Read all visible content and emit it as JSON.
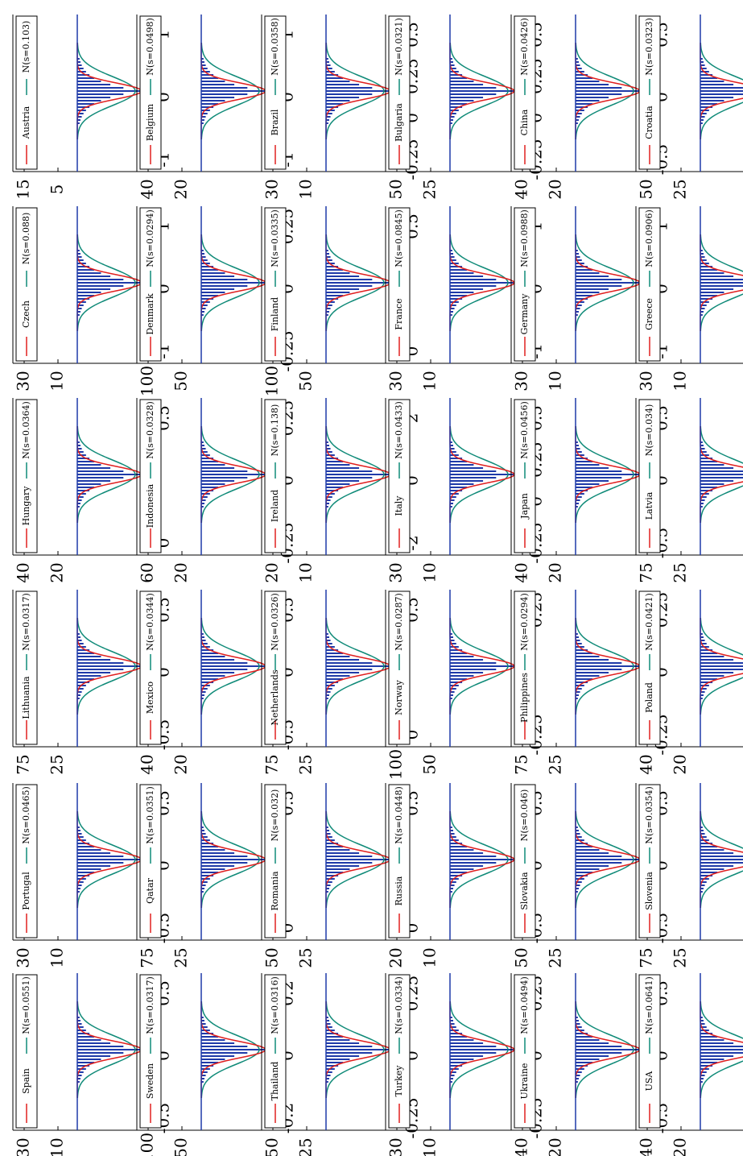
{
  "colors": {
    "empirical": "#e0201f",
    "normal": "#0f8a78",
    "histogram": "#1f3aa8"
  },
  "chart_data": [
    {
      "type": "line",
      "country": "Austria",
      "legend": {
        "empirical": "Austria",
        "normal": "N(s=0.103)"
      },
      "yticks": [
        "15",
        "5"
      ],
      "xticks": [
        "-1",
        "0",
        "1"
      ]
    },
    {
      "type": "line",
      "country": "Belgium",
      "legend": {
        "empirical": "Belgium",
        "normal": "N(s=0.0498)"
      },
      "yticks": [
        "40",
        "20"
      ],
      "xticks": [
        "-1",
        "0",
        "1"
      ]
    },
    {
      "type": "line",
      "country": "Brazil",
      "legend": {
        "empirical": "Brazil",
        "normal": "N(s=0.0358)"
      },
      "yticks": [
        "30",
        "10"
      ],
      "xticks": [
        "-0.25",
        "0",
        "0.25",
        "0.5"
      ]
    },
    {
      "type": "line",
      "country": "Bulgaria",
      "legend": {
        "empirical": "Bulgaria",
        "normal": "N(s=0.0321)"
      },
      "yticks": [
        "50",
        "25"
      ],
      "xticks": [
        "-0.25",
        "0",
        "0.25",
        "0.5"
      ]
    },
    {
      "type": "line",
      "country": "China",
      "legend": {
        "empirical": "China",
        "normal": "N(s=0.0426)"
      },
      "yticks": [
        "40",
        "20"
      ],
      "xticks": [
        "-0.5",
        "0",
        "0.5"
      ]
    },
    {
      "type": "line",
      "country": "Croatia",
      "legend": {
        "empirical": "Croatia",
        "normal": "N(s=0.0323)"
      },
      "yticks": [
        "50",
        "25"
      ],
      "xticks": [
        "-0.5",
        "-0.25",
        "0",
        "0.25"
      ]
    },
    {
      "type": "line",
      "country": "Czech",
      "legend": {
        "empirical": "Czech",
        "normal": "N(s=0.088)"
      },
      "yticks": [
        "30",
        "10"
      ],
      "xticks": [
        "-1",
        "0",
        "1"
      ]
    },
    {
      "type": "line",
      "country": "Denmark",
      "legend": {
        "empirical": "Denmark",
        "normal": "N(s=0.0294)"
      },
      "yticks": [
        "100",
        "50"
      ],
      "xticks": [
        "-0.25",
        "0",
        "0.25"
      ]
    },
    {
      "type": "line",
      "country": "Finland",
      "legend": {
        "empirical": "Finland",
        "normal": "N(s=0.0335)"
      },
      "yticks": [
        "100",
        "50"
      ],
      "xticks": [
        "0",
        "0.5"
      ]
    },
    {
      "type": "line",
      "country": "France",
      "legend": {
        "empirical": "France",
        "normal": "N(s=0.0845)"
      },
      "yticks": [
        "30",
        "10"
      ],
      "xticks": [
        "-1",
        "0",
        "1"
      ]
    },
    {
      "type": "line",
      "country": "Germany",
      "legend": {
        "empirical": "Germany",
        "normal": "N(s=0.0988)"
      },
      "yticks": [
        "30",
        "10"
      ],
      "xticks": [
        "-1",
        "0",
        "1"
      ]
    },
    {
      "type": "line",
      "country": "Greece",
      "legend": {
        "empirical": "Greece",
        "normal": "N(s=0.0906)"
      },
      "yticks": [
        "30",
        "10"
      ],
      "xticks": [
        "-4",
        "-2",
        "0"
      ]
    },
    {
      "type": "line",
      "country": "Hungary",
      "legend": {
        "empirical": "Hungary",
        "normal": "N(s=0.0364)"
      },
      "yticks": [
        "40",
        "20"
      ],
      "xticks": [
        "0",
        "0.5"
      ]
    },
    {
      "type": "line",
      "country": "Indonesia",
      "legend": {
        "empirical": "Indonesia",
        "normal": "N(s=0.0328)"
      },
      "yticks": [
        "60",
        "20"
      ],
      "xticks": [
        "-0.25",
        "0",
        "0.25"
      ]
    },
    {
      "type": "line",
      "country": "Ireland",
      "legend": {
        "empirical": "Ireland",
        "normal": "N(s=0.138)"
      },
      "yticks": [
        "20",
        "10"
      ],
      "xticks": [
        "-2",
        "0",
        "2"
      ]
    },
    {
      "type": "line",
      "country": "Italy",
      "legend": {
        "empirical": "Italy",
        "normal": "N(s=0.0433)"
      },
      "yticks": [
        "30",
        "10"
      ],
      "xticks": [
        "-0.25",
        "0",
        "0.25",
        "0.5"
      ]
    },
    {
      "type": "line",
      "country": "Japan",
      "legend": {
        "empirical": "Japan",
        "normal": "N(s=0.0456)"
      },
      "yticks": [
        "40",
        "20"
      ],
      "xticks": [
        "-0.5",
        "0",
        "0.5"
      ]
    },
    {
      "type": "line",
      "country": "Latvia",
      "legend": {
        "empirical": "Latvia",
        "normal": "N(s=0.034)"
      },
      "yticks": [
        "75",
        "25"
      ],
      "xticks": [
        "-0.5",
        "0",
        "0.5"
      ]
    },
    {
      "type": "line",
      "country": "Lithuania",
      "legend": {
        "empirical": "Lithuania",
        "normal": "N(s=0.0317)"
      },
      "yticks": [
        "75",
        "25"
      ],
      "xticks": [
        "-0.5",
        "0",
        "0.5"
      ]
    },
    {
      "type": "line",
      "country": "Mexico",
      "legend": {
        "empirical": "Mexico",
        "normal": "N(s=0.0344)"
      },
      "yticks": [
        "40",
        "20"
      ],
      "xticks": [
        "-0.5",
        "0",
        "0.5"
      ]
    },
    {
      "type": "line",
      "country": "Netherlands",
      "legend": {
        "empirical": "Netherlands",
        "normal": "N(s=0.0326)"
      },
      "yticks": [
        "75",
        "25"
      ],
      "xticks": [
        "0",
        "0.5"
      ]
    },
    {
      "type": "line",
      "country": "Norway",
      "legend": {
        "empirical": "Norway",
        "normal": "N(s=0.0287)"
      },
      "yticks": [
        "100",
        "50"
      ],
      "xticks": [
        "-0.25",
        "0.25"
      ]
    },
    {
      "type": "line",
      "country": "Philippines",
      "legend": {
        "empirical": "Philippines",
        "normal": "N(s=0.0294)"
      },
      "yticks": [
        "75",
        "25"
      ],
      "xticks": [
        "-0.25",
        "0",
        "0.25"
      ]
    },
    {
      "type": "line",
      "country": "Poland",
      "legend": {
        "empirical": "Poland",
        "normal": "N(s=0.0421)"
      },
      "yticks": [
        "40",
        "20"
      ],
      "xticks": [
        "-0.5",
        "0",
        "0.5"
      ]
    },
    {
      "type": "line",
      "country": "Portugal",
      "legend": {
        "empirical": "Portugal",
        "normal": "N(s=0.0465)"
      },
      "yticks": [
        "30",
        "10"
      ],
      "xticks": [
        "-0.5",
        "0",
        "0.5"
      ]
    },
    {
      "type": "line",
      "country": "Qatar",
      "legend": {
        "empirical": "Qatar",
        "normal": "N(s=0.0351)"
      },
      "yticks": [
        "75",
        "25"
      ],
      "xticks": [
        "0",
        "0.5"
      ]
    },
    {
      "type": "line",
      "country": "Romania",
      "legend": {
        "empirical": "Romania",
        "normal": "N(s=0.032)"
      },
      "yticks": [
        "50",
        "25"
      ],
      "xticks": [
        "0",
        "0.5"
      ]
    },
    {
      "type": "line",
      "country": "Russia",
      "legend": {
        "empirical": "Russia",
        "normal": "N(s=0.0448)"
      },
      "yticks": [
        "20",
        "10"
      ],
      "xticks": [
        "-0.5",
        "0",
        "0.5"
      ]
    },
    {
      "type": "line",
      "country": "Slovakia",
      "legend": {
        "empirical": "Slovakia",
        "normal": "N(s=0.046)"
      },
      "yticks": [
        "50",
        "25"
      ],
      "xticks": [
        "-0.5",
        "0",
        "0.5"
      ]
    },
    {
      "type": "line",
      "country": "Slovenia",
      "legend": {
        "empirical": "Slovenia",
        "normal": "N(s=0.0354)"
      },
      "yticks": [
        "75",
        "25"
      ],
      "xticks": [
        "0",
        "0.5"
      ]
    },
    {
      "type": "line",
      "country": "Spain",
      "legend": {
        "empirical": "Spain",
        "normal": "N(s=0.0551)"
      },
      "yticks": [
        "30",
        "10"
      ],
      "xticks": [
        "-0.5",
        "0",
        "0.5"
      ]
    },
    {
      "type": "line",
      "country": "Sweden",
      "legend": {
        "empirical": "Sweden",
        "normal": "N(s=0.0317)"
      },
      "yticks": [
        "100",
        "50"
      ],
      "xticks": [
        "-0.2",
        "0",
        "0.2"
      ]
    },
    {
      "type": "line",
      "country": "Thailand",
      "legend": {
        "empirical": "Thailand",
        "normal": "N(s=0.0316)"
      },
      "yticks": [
        "50",
        "25"
      ],
      "xticks": [
        "-0.25",
        "0",
        "0.25"
      ]
    },
    {
      "type": "line",
      "country": "Turkey",
      "legend": {
        "empirical": "Turkey",
        "normal": "N(s=0.0334)"
      },
      "yticks": [
        "30",
        "10"
      ],
      "xticks": [
        "-0.25",
        "0",
        "0.25"
      ]
    },
    {
      "type": "line",
      "country": "Ukraine",
      "legend": {
        "empirical": "Ukraine",
        "normal": "N(s=0.0494)"
      },
      "yticks": [
        "40",
        "20"
      ],
      "xticks": [
        "-0.5",
        "0",
        "0.5"
      ]
    },
    {
      "type": "line",
      "country": "USA",
      "legend": {
        "empirical": "USA",
        "normal": "N(s=0.0641)"
      },
      "yticks": [
        "40",
        "20"
      ],
      "xticks": [
        "-0.5",
        "0",
        "0.5"
      ]
    }
  ]
}
